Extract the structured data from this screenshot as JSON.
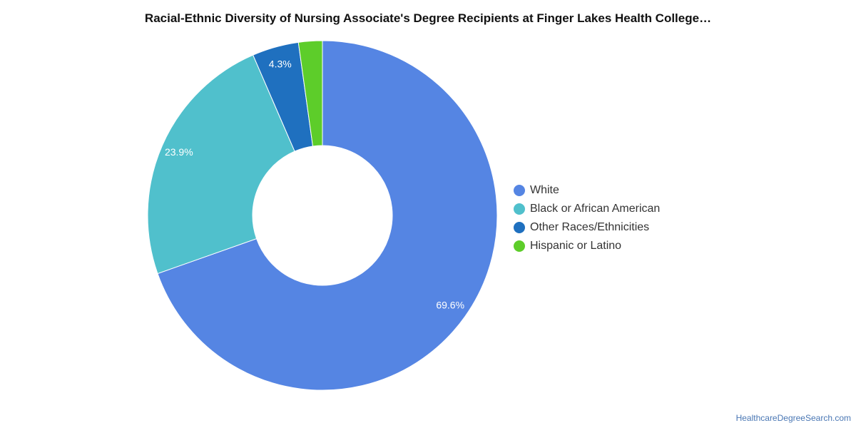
{
  "chart_data": {
    "type": "pie",
    "title": "Racial-Ethnic Diversity of Nursing Associate's Degree Recipients at Finger Lakes Health College…",
    "donut": true,
    "legend_position": "right",
    "series": [
      {
        "name": "White",
        "value": 69.6,
        "label": "69.6%",
        "color": "#5585e3"
      },
      {
        "name": "Black or African American",
        "value": 23.9,
        "label": "23.9%",
        "color": "#50c0cc"
      },
      {
        "name": "Other Races/Ethnicities",
        "value": 4.3,
        "label": "4.3%",
        "color": "#1f70bf"
      },
      {
        "name": "Hispanic or Latino",
        "value": 2.2,
        "label": "",
        "color": "#5dcd2a"
      }
    ]
  },
  "footer": {
    "source": "HealthcareDegreeSearch.com"
  }
}
